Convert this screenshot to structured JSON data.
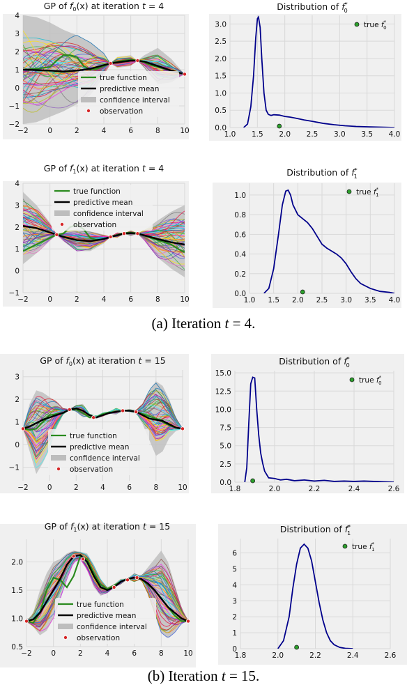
{
  "captions": [
    {
      "prefix": "(a) Iteration ",
      "var": "t",
      "rest": " = 4."
    },
    {
      "prefix": "(b) Iteration ",
      "var": "t",
      "rest": " = 15."
    }
  ],
  "legend_gp": {
    "true_function": "true function",
    "predictive_mean": "predictive mean",
    "confidence_interval": "confidence interval",
    "observation": "observation"
  },
  "colors": {
    "panel_bg": "#f0f0f0",
    "grid": "#d9d9d9",
    "true_function": "#2a8a1e",
    "predictive_mean": "#000000",
    "confidence_interval": "#bdbdbd",
    "observation_fill": "#d62728",
    "dist_line": "#00008b",
    "dist_marker": "#2ca02c"
  },
  "chart_data": [
    {
      "type": "line",
      "title": "GP of f0(x) at iteration t = 4",
      "title_parts": {
        "pre": "GP of ",
        "fn": "f",
        "sub": "0",
        "mid": "(x) at iteration ",
        "var": "t",
        "post": " = 4"
      },
      "xlim": [
        -2,
        10
      ],
      "ylim": [
        -2,
        4
      ],
      "xticks": [
        -2,
        0,
        2,
        4,
        6,
        8,
        10
      ],
      "yticks": [
        -2,
        -1,
        0,
        1,
        2,
        3,
        4
      ],
      "true_function": {
        "x": [
          -2,
          -1,
          0,
          0.5,
          1,
          1.5,
          2,
          2.5,
          3,
          3.5,
          4,
          4.5,
          5,
          5.5,
          6,
          6.5,
          7,
          7.5,
          8,
          8.5,
          9,
          9.5,
          10
        ],
        "y": [
          1.0,
          1.05,
          1.15,
          1.5,
          1.8,
          1.8,
          1.7,
          1.2,
          1.0,
          1.05,
          1.2,
          1.35,
          1.45,
          1.5,
          1.55,
          1.5,
          1.4,
          1.25,
          1.15,
          1.05,
          0.95,
          0.85,
          0.75
        ]
      },
      "predictive_mean": {
        "x": [
          -2,
          -1,
          0,
          1,
          2,
          3,
          4,
          4.5,
          5,
          6,
          6.5,
          7,
          8,
          9,
          10
        ],
        "y": [
          1.0,
          0.98,
          0.95,
          0.9,
          0.95,
          1.05,
          1.25,
          1.35,
          1.4,
          1.5,
          1.5,
          1.45,
          1.2,
          0.95,
          0.75
        ]
      },
      "ci": {
        "x": [
          -2,
          -1,
          0,
          1,
          2,
          3,
          4,
          4.5,
          5,
          6,
          6.5,
          7,
          8,
          9,
          10
        ],
        "lower": [
          -2.0,
          -1.9,
          -1.6,
          -1.3,
          -0.9,
          -0.4,
          0.6,
          1.35,
          1.1,
          1.2,
          1.5,
          1.1,
          0.2,
          0.3,
          0.75
        ],
        "upper": [
          4.0,
          3.9,
          3.6,
          3.2,
          2.9,
          2.5,
          1.9,
          1.35,
          1.7,
          1.8,
          1.5,
          1.8,
          2.2,
          1.6,
          0.75
        ]
      },
      "observations": {
        "x": [
          4.5,
          6.5,
          10
        ],
        "y": [
          1.35,
          1.5,
          0.75
        ]
      }
    },
    {
      "type": "line",
      "title": "Distribution of f0*",
      "title_parts": {
        "pre": "Distribution of ",
        "fn": "f",
        "sub": "0",
        "sup": "*"
      },
      "xlim": [
        1.0,
        4.0
      ],
      "ylim": [
        0,
        3.25
      ],
      "xticks": [
        1.0,
        1.5,
        2.0,
        2.5,
        3.0,
        3.5,
        4.0
      ],
      "yticks": [
        0.0,
        0.5,
        1.0,
        1.5,
        2.0,
        2.5,
        3.0
      ],
      "density": {
        "x": [
          1.25,
          1.32,
          1.38,
          1.43,
          1.47,
          1.5,
          1.52,
          1.55,
          1.58,
          1.62,
          1.66,
          1.7,
          1.75,
          1.8,
          1.9,
          2.0,
          2.1,
          2.2,
          2.35,
          2.5,
          2.7,
          2.9,
          3.1,
          3.3,
          3.5,
          3.75,
          4.0
        ],
        "y": [
          0.0,
          0.1,
          0.6,
          1.5,
          2.6,
          3.15,
          3.2,
          2.9,
          2.0,
          1.0,
          0.5,
          0.38,
          0.35,
          0.37,
          0.36,
          0.32,
          0.3,
          0.27,
          0.22,
          0.18,
          0.12,
          0.08,
          0.05,
          0.03,
          0.02,
          0.01,
          0.0
        ]
      },
      "true_value": {
        "x": 1.9,
        "y": 0.02
      },
      "legend": {
        "label_pre": "true ",
        "fn": "f",
        "sub": "0",
        "sup": "*"
      }
    },
    {
      "type": "line",
      "title": "GP of f1(x) at iteration t = 4",
      "title_parts": {
        "pre": "GP of ",
        "fn": "f",
        "sub": "1",
        "mid": "(x) at iteration ",
        "var": "t",
        "post": " = 4"
      },
      "xlim": [
        -2,
        10
      ],
      "ylim": [
        -1,
        4
      ],
      "xticks": [
        -2,
        0,
        2,
        4,
        6,
        8,
        10
      ],
      "yticks": [
        -1,
        0,
        1,
        2,
        3,
        4
      ],
      "true_function": {
        "x": [
          -2,
          -1,
          0,
          0.5,
          1,
          1.5,
          2,
          2.5,
          3,
          3.5,
          4,
          4.5,
          5,
          5.5,
          6,
          6.5,
          7,
          7.5,
          8,
          8.5,
          9,
          9.5,
          10
        ],
        "y": [
          0.9,
          1.2,
          1.5,
          1.65,
          1.7,
          2.0,
          2.1,
          1.9,
          1.5,
          1.4,
          1.45,
          1.55,
          1.65,
          1.72,
          1.75,
          1.7,
          1.6,
          1.5,
          1.4,
          1.3,
          1.2,
          1.0,
          0.85
        ]
      },
      "predictive_mean": {
        "x": [
          -2,
          -1,
          0,
          0.5,
          1,
          2,
          3,
          4,
          4.5,
          5,
          5.5,
          6,
          6.5,
          7,
          8,
          9,
          10
        ],
        "y": [
          2.05,
          1.95,
          1.75,
          1.65,
          1.55,
          1.4,
          1.35,
          1.45,
          1.55,
          1.62,
          1.7,
          1.72,
          1.7,
          1.62,
          1.45,
          1.3,
          1.2
        ]
      },
      "ci": {
        "x": [
          -2,
          -1,
          0,
          0.5,
          1,
          2,
          3,
          4,
          4.5,
          5,
          5.5,
          6,
          6.5,
          7,
          8,
          9,
          10
        ],
        "lower": [
          0.3,
          0.8,
          1.4,
          1.65,
          1.35,
          0.9,
          0.9,
          1.25,
          1.55,
          1.5,
          1.7,
          1.6,
          1.7,
          1.4,
          0.6,
          0.1,
          -0.3
        ],
        "upper": [
          3.6,
          3.0,
          2.2,
          1.65,
          1.75,
          1.9,
          1.8,
          1.65,
          1.55,
          1.75,
          1.7,
          1.85,
          1.7,
          1.85,
          2.3,
          2.7,
          3.0
        ]
      },
      "observations": {
        "x": [
          0.5,
          4.5,
          5.5,
          6.5
        ],
        "y": [
          1.65,
          1.55,
          1.7,
          1.7
        ]
      }
    },
    {
      "type": "line",
      "title": "Distribution of f1*",
      "title_parts": {
        "pre": "Distribution of ",
        "fn": "f",
        "sub": "1",
        "sup": "*"
      },
      "xlim": [
        1.0,
        4.0
      ],
      "ylim": [
        0,
        1.12
      ],
      "xticks": [
        1.0,
        1.5,
        2.0,
        2.5,
        3.0,
        3.5,
        4.0
      ],
      "yticks": [
        0.0,
        0.2,
        0.4,
        0.6,
        0.8,
        1.0
      ],
      "density": {
        "x": [
          1.3,
          1.4,
          1.5,
          1.6,
          1.68,
          1.75,
          1.8,
          1.85,
          1.9,
          2.0,
          2.1,
          2.2,
          2.3,
          2.4,
          2.5,
          2.6,
          2.7,
          2.8,
          2.9,
          3.0,
          3.1,
          3.2,
          3.3,
          3.5,
          3.7,
          3.9,
          4.0
        ],
        "y": [
          0.0,
          0.05,
          0.25,
          0.6,
          0.9,
          1.04,
          1.05,
          1.0,
          0.9,
          0.8,
          0.76,
          0.72,
          0.66,
          0.58,
          0.5,
          0.46,
          0.43,
          0.4,
          0.36,
          0.3,
          0.22,
          0.15,
          0.1,
          0.05,
          0.02,
          0.01,
          0.0
        ]
      },
      "true_value": {
        "x": 2.1,
        "y": 0.0
      },
      "legend": {
        "label_pre": "true ",
        "fn": "f",
        "sub": "1",
        "sup": "*"
      }
    },
    {
      "type": "line",
      "title": "GP of f0(x) at iteration t = 15",
      "title_parts": {
        "pre": "GP of ",
        "fn": "f",
        "sub": "0",
        "mid": "(x) at iteration ",
        "var": "t",
        "post": " = 15"
      },
      "xlim": [
        -2,
        10
      ],
      "ylim": [
        -1.6,
        3.3
      ],
      "xticks": [
        -2,
        0,
        2,
        4,
        6,
        8,
        10
      ],
      "yticks": [
        -1,
        0,
        1,
        2,
        3
      ],
      "true_function": {
        "x": [
          -2,
          -1.5,
          -1,
          -0.5,
          0,
          0.5,
          1,
          1.5,
          2,
          2.5,
          3,
          3.5,
          4,
          4.5,
          5,
          5.5,
          6,
          6.5,
          7,
          7.5,
          8,
          8.5,
          9,
          9.5,
          10
        ],
        "y": [
          0.7,
          0.65,
          0.7,
          1.0,
          1.3,
          1.35,
          1.4,
          1.55,
          1.55,
          1.4,
          1.2,
          1.2,
          1.35,
          1.42,
          1.45,
          1.5,
          1.5,
          1.45,
          1.35,
          1.25,
          1.15,
          1.0,
          0.85,
          0.75,
          0.7
        ]
      },
      "predictive_mean": {
        "x": [
          -2,
          -1.5,
          -1,
          -0.5,
          0,
          0.5,
          1,
          1.5,
          2,
          2.5,
          3,
          3.5,
          4,
          4.5,
          5,
          5.5,
          6,
          6.5,
          7,
          7.5,
          8,
          8.5,
          9,
          9.5,
          10
        ],
        "y": [
          0.7,
          0.8,
          0.95,
          1.1,
          1.2,
          1.3,
          1.4,
          1.55,
          1.6,
          1.5,
          1.3,
          1.2,
          1.3,
          1.4,
          1.45,
          1.5,
          1.5,
          1.45,
          1.3,
          1.15,
          1.1,
          1.05,
          0.9,
          0.75,
          0.7
        ]
      },
      "ci": {
        "x": [
          -2,
          -1.5,
          -1,
          -0.5,
          0,
          0.5,
          1,
          1.5,
          2,
          2.5,
          3,
          3.5,
          4,
          4.5,
          5,
          5.5,
          6,
          6.5,
          7,
          7.5,
          8,
          8.5,
          9,
          9.5,
          10
        ],
        "lower": [
          0.7,
          -0.3,
          -1.3,
          -0.8,
          -0.2,
          0.7,
          1.3,
          1.55,
          1.45,
          1.2,
          1.25,
          1.15,
          1.25,
          1.38,
          1.35,
          1.5,
          1.45,
          1.4,
          0.9,
          0.2,
          -0.5,
          -0.3,
          0.3,
          0.6,
          0.7
        ],
        "upper": [
          0.7,
          1.8,
          2.4,
          2.3,
          2.1,
          1.9,
          1.6,
          1.55,
          1.75,
          1.8,
          1.35,
          1.25,
          1.4,
          1.45,
          1.6,
          1.5,
          1.55,
          1.5,
          1.8,
          2.4,
          2.8,
          2.6,
          2.0,
          1.2,
          0.7
        ]
      },
      "observations": {
        "x": [
          -2,
          1.5,
          3.3,
          5.5,
          6.5,
          10
        ],
        "y": [
          0.7,
          1.55,
          1.2,
          1.5,
          1.45,
          0.7
        ]
      }
    },
    {
      "type": "line",
      "title": "Distribution of f0*",
      "title_parts": {
        "pre": "Distribution of ",
        "fn": "f",
        "sub": "0",
        "sup": "*"
      },
      "xlim": [
        1.8,
        2.6
      ],
      "ylim": [
        0,
        15.3
      ],
      "xticks": [
        1.8,
        2.0,
        2.2,
        2.4,
        2.6
      ],
      "yticks": [
        0.0,
        2.5,
        5.0,
        7.5,
        10.0,
        12.5,
        15.0
      ],
      "density": {
        "x": [
          1.85,
          1.86,
          1.87,
          1.88,
          1.89,
          1.9,
          1.91,
          1.92,
          1.93,
          1.94,
          1.95,
          1.97,
          2.0,
          2.03,
          2.06,
          2.1,
          2.15,
          2.2,
          2.25,
          2.3,
          2.35,
          2.4,
          2.45,
          2.5,
          2.55,
          2.6
        ],
        "y": [
          0.0,
          2.0,
          8.0,
          13.5,
          14.4,
          14.3,
          10.0,
          6.5,
          4.0,
          2.6,
          1.5,
          0.6,
          0.5,
          0.3,
          0.4,
          0.2,
          0.3,
          0.15,
          0.25,
          0.1,
          0.15,
          0.1,
          0.15,
          0.1,
          0.05,
          0.0
        ]
      },
      "true_value": {
        "x": 1.89,
        "y": 0.0
      },
      "legend": {
        "label_pre": "true ",
        "fn": "f",
        "sub": "0",
        "sup": "*"
      }
    },
    {
      "type": "line",
      "title": "GP of f1(x) at iteration t = 15",
      "title_parts": {
        "pre": "GP of ",
        "fn": "f",
        "sub": "1",
        "mid": "(x) at iteration ",
        "var": "t",
        "post": " = 15"
      },
      "xlim": [
        -2,
        10
      ],
      "ylim": [
        0.5,
        2.4
      ],
      "xticks": [
        -2,
        0,
        2,
        4,
        6,
        8,
        10
      ],
      "yticks": [
        0.5,
        1.0,
        1.5,
        2.0
      ],
      "true_function": {
        "x": [
          -2,
          -1.5,
          -1,
          -0.5,
          0,
          0.5,
          1,
          1.5,
          2,
          2.5,
          3,
          3.5,
          4,
          4.5,
          5,
          5.5,
          6,
          6.5,
          7,
          7.5,
          8,
          8.5,
          9,
          9.5,
          10
        ],
        "y": [
          0.95,
          0.92,
          1.1,
          1.5,
          1.72,
          1.68,
          1.55,
          1.75,
          2.1,
          2.05,
          1.8,
          1.6,
          1.52,
          1.58,
          1.65,
          1.7,
          1.72,
          1.7,
          1.6,
          1.5,
          1.35,
          1.2,
          1.05,
          0.95,
          0.95
        ]
      },
      "predictive_mean": {
        "x": [
          -2,
          -1.5,
          -1,
          -0.5,
          0,
          0.5,
          1,
          1.5,
          2,
          2.5,
          3,
          3.5,
          4,
          4.5,
          5,
          5.5,
          6,
          6.5,
          7,
          7.5,
          8,
          8.5,
          9,
          9.5,
          10
        ],
        "y": [
          0.95,
          0.98,
          1.1,
          1.3,
          1.5,
          1.7,
          1.95,
          2.1,
          2.12,
          2.0,
          1.75,
          1.55,
          1.5,
          1.55,
          1.65,
          1.7,
          1.72,
          1.7,
          1.62,
          1.5,
          1.35,
          1.2,
          1.1,
          1.0,
          0.95
        ]
      },
      "ci": {
        "x": [
          -2,
          -1.5,
          -1,
          -0.5,
          0,
          0.5,
          1,
          1.5,
          2,
          2.5,
          3,
          3.5,
          4,
          4.5,
          5,
          5.5,
          6,
          6.5,
          7,
          7.5,
          8,
          8.5,
          9,
          9.5,
          10
        ],
        "lower": [
          0.95,
          0.85,
          0.7,
          0.78,
          1.0,
          1.35,
          1.7,
          2.0,
          2.05,
          1.85,
          1.55,
          1.4,
          1.45,
          1.55,
          1.6,
          1.7,
          1.65,
          1.7,
          1.45,
          1.1,
          0.75,
          0.65,
          0.75,
          0.9,
          0.95
        ],
        "upper": [
          0.95,
          1.1,
          1.5,
          1.8,
          2.0,
          2.05,
          2.15,
          2.2,
          2.18,
          2.15,
          1.95,
          1.7,
          1.55,
          1.6,
          1.7,
          1.7,
          1.8,
          1.75,
          1.9,
          2.05,
          2.2,
          2.0,
          1.6,
          1.2,
          0.95
        ]
      },
      "observations": {
        "x": [
          -2,
          1.5,
          2.2,
          4.5,
          5.5,
          6.2,
          10
        ],
        "y": [
          0.95,
          2.1,
          2.05,
          1.55,
          1.68,
          1.72,
          0.95
        ]
      }
    },
    {
      "type": "line",
      "title": "Distribution of f1*",
      "title_parts": {
        "pre": "Distribution of ",
        "fn": "f",
        "sub": "1",
        "sup": "*"
      },
      "xlim": [
        1.8,
        2.6
      ],
      "ylim": [
        0,
        6.9
      ],
      "xticks": [
        1.8,
        2.0,
        2.2,
        2.4,
        2.6
      ],
      "yticks": [
        0,
        1,
        2,
        3,
        4,
        5,
        6
      ],
      "density": {
        "x": [
          2.0,
          2.03,
          2.06,
          2.08,
          2.1,
          2.12,
          2.14,
          2.16,
          2.18,
          2.2,
          2.22,
          2.24,
          2.26,
          2.28,
          2.3,
          2.33,
          2.36,
          2.4
        ],
        "y": [
          0.0,
          0.5,
          2.0,
          3.8,
          5.3,
          6.3,
          6.55,
          6.3,
          5.5,
          4.2,
          2.9,
          1.8,
          1.0,
          0.5,
          0.25,
          0.08,
          0.02,
          0.0
        ]
      },
      "true_value": {
        "x": 2.1,
        "y": 0.0
      },
      "legend": {
        "label_pre": "true ",
        "fn": "f",
        "sub": "1",
        "sup": "*"
      }
    }
  ]
}
